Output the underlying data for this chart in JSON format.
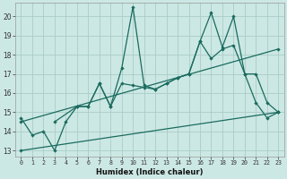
{
  "xlabel": "Humidex (Indice chaleur)",
  "xlim": [
    -0.5,
    23.5
  ],
  "ylim": [
    12.7,
    20.7
  ],
  "yticks": [
    13,
    14,
    15,
    16,
    17,
    18,
    19,
    20
  ],
  "xticks": [
    0,
    1,
    2,
    3,
    4,
    5,
    6,
    7,
    8,
    9,
    10,
    11,
    12,
    13,
    14,
    15,
    16,
    17,
    18,
    19,
    20,
    21,
    22,
    23
  ],
  "bg_color": "#cce8e4",
  "grid_color": "#aaccc8",
  "line_color": "#1a6b5e",
  "series1_x": [
    0,
    1,
    2,
    3,
    4,
    5,
    6,
    7,
    8,
    9,
    10,
    11,
    12,
    13,
    14,
    15,
    16,
    17,
    18,
    19,
    20,
    21,
    22,
    23
  ],
  "series1_y": [
    14.7,
    13.8,
    14.0,
    13.0,
    14.5,
    15.3,
    15.3,
    16.5,
    15.3,
    17.3,
    20.5,
    16.4,
    16.2,
    16.5,
    16.8,
    17.0,
    18.7,
    20.2,
    18.4,
    20.0,
    17.0,
    15.5,
    14.7,
    15.0
  ],
  "series2_x": [
    3,
    5,
    6,
    7,
    8,
    9,
    10,
    11,
    12,
    13,
    14,
    15,
    16,
    17,
    18,
    19,
    20,
    21,
    22,
    23
  ],
  "series2_y": [
    14.5,
    15.3,
    15.3,
    16.5,
    15.3,
    16.5,
    16.4,
    16.3,
    16.2,
    16.5,
    16.8,
    17.0,
    18.7,
    17.8,
    18.3,
    18.5,
    17.0,
    17.0,
    15.5,
    15.0
  ],
  "series3_x": [
    0,
    23
  ],
  "series3_y": [
    14.5,
    18.3
  ],
  "series4_x": [
    0,
    23
  ],
  "series4_y": [
    13.0,
    15.0
  ]
}
